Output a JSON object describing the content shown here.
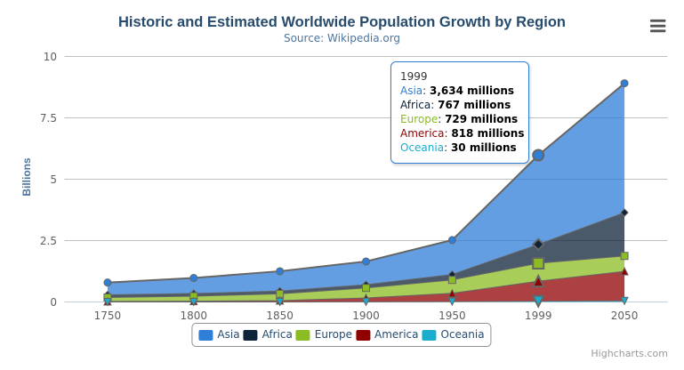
{
  "header": {
    "title": "Historic and Estimated Worldwide Population Growth by Region",
    "subtitle": "Source: Wikipedia.org"
  },
  "chart_data": {
    "type": "area",
    "stacking": "normal",
    "title": "Historic and Estimated Worldwide Population Growth by Region",
    "subtitle": "Source: Wikipedia.org",
    "categories": [
      "1750",
      "1800",
      "1850",
      "1900",
      "1950",
      "1999",
      "2050"
    ],
    "series": [
      {
        "name": "Asia",
        "color": "#2f7ed8",
        "marker": "circle",
        "values": [
          502,
          635,
          809,
          947,
          1402,
          3634,
          5268
        ]
      },
      {
        "name": "Africa",
        "color": "#0d233a",
        "marker": "diamond",
        "values": [
          106,
          107,
          111,
          133,
          221,
          767,
          1766
        ]
      },
      {
        "name": "Europe",
        "color": "#8bbc21",
        "marker": "square",
        "values": [
          163,
          203,
          276,
          408,
          547,
          729,
          628
        ]
      },
      {
        "name": "America",
        "color": "#910000",
        "marker": "triangle",
        "values": [
          18,
          31,
          54,
          156,
          339,
          818,
          1201
        ]
      },
      {
        "name": "Oceania",
        "color": "#1aadce",
        "marker": "triangle-down",
        "values": [
          2,
          2,
          2,
          6,
          13,
          30,
          46
        ]
      }
    ],
    "values_unit": "millions",
    "y_axis": {
      "title": "Billions",
      "ticks": [
        0,
        2.5,
        5,
        7.5,
        10
      ],
      "tick_labels": [
        "0",
        "2.5",
        "5",
        "7.5",
        "10"
      ],
      "min": 0,
      "max": 10,
      "millions_per_unit": 1000
    },
    "xlabel": "",
    "ylabel": "Billions",
    "ylim": [
      0,
      10
    ],
    "grid": true,
    "legend_position": "bottom",
    "fill_opacity": 0.75,
    "line_color": "#666666",
    "grid_line_color": "#c0c0c0",
    "axis_line_color": "#c0d0e0",
    "hovered_category_index": 5,
    "hovered_series": "Asia"
  },
  "tooltip": {
    "header": "1999",
    "separator": ": ",
    "border_color": "#2f7ed8",
    "rows": [
      {
        "label": "Asia",
        "value": "3,634 millions",
        "color": "#2f7ed8"
      },
      {
        "label": "Africa",
        "value": "767 millions",
        "color": "#0d233a"
      },
      {
        "label": "Europe",
        "value": "729 millions",
        "color": "#8bbc21"
      },
      {
        "label": "America",
        "value": "818 millions",
        "color": "#910000"
      },
      {
        "label": "Oceania",
        "value": "30 millions",
        "color": "#1aadce"
      }
    ]
  },
  "legend": {
    "border_color": "#909090",
    "text_color": "#274b6d",
    "items": [
      {
        "label": "Asia",
        "color": "#2f7ed8"
      },
      {
        "label": "Africa",
        "color": "#0d233a"
      },
      {
        "label": "Europe",
        "color": "#8bbc21"
      },
      {
        "label": "America",
        "color": "#910000"
      },
      {
        "label": "Oceania",
        "color": "#1aadce"
      }
    ]
  },
  "credits": {
    "label": "Highcharts.com"
  },
  "context_menu": {
    "icon_color": "#555555"
  }
}
